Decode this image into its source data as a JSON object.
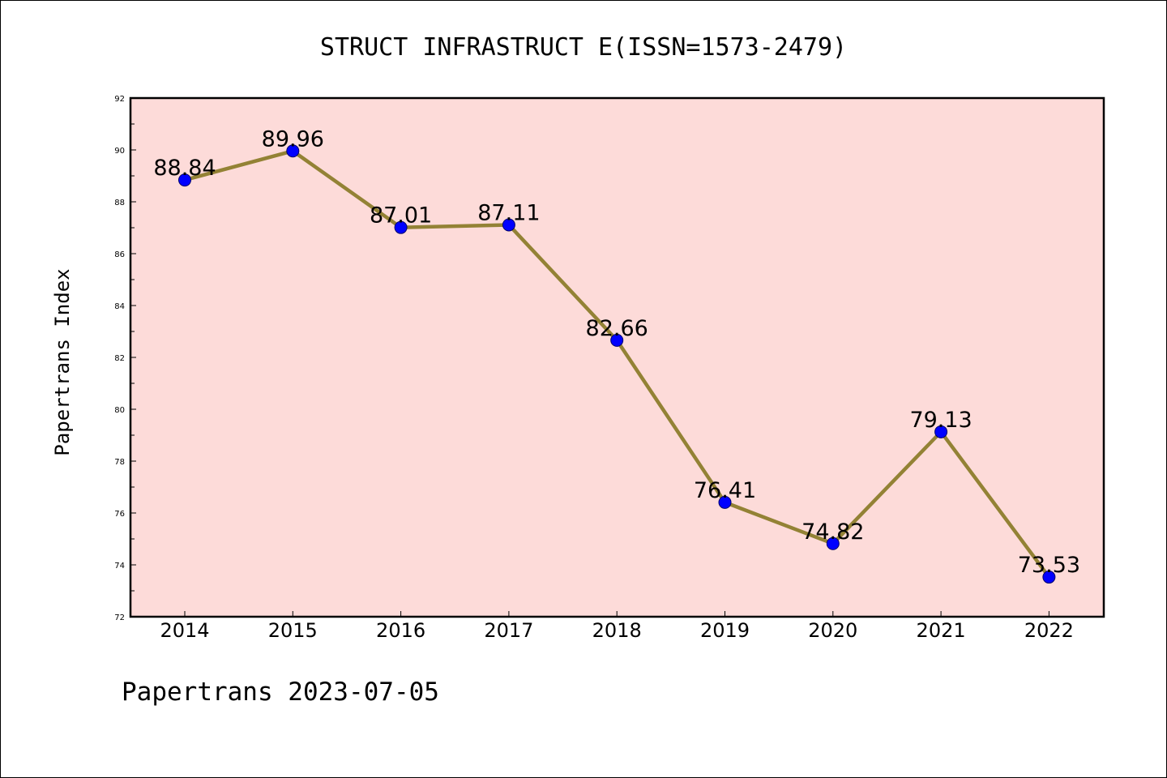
{
  "chart_data": {
    "type": "line",
    "title": "STRUCT INFRASTRUCT E(ISSN=1573-2479)",
    "ylabel": "Papertrans Index",
    "xlabel": "",
    "categories": [
      "2014",
      "2015",
      "2016",
      "2017",
      "2018",
      "2019",
      "2020",
      "2021",
      "2022"
    ],
    "series": [
      {
        "values": [
          88.84,
          89.96,
          87.01,
          87.11,
          82.66,
          76.41,
          74.82,
          79.13,
          73.53
        ]
      }
    ],
    "data_labels": [
      "88.84",
      "89.96",
      "87.01",
      "87.11",
      "82.66",
      "76.41",
      "74.82",
      "79.13",
      "73.53"
    ],
    "ylim": [
      72,
      92
    ],
    "yticks": [
      "72",
      "74",
      "76",
      "78",
      "80",
      "82",
      "84",
      "86",
      "88",
      "90",
      "92"
    ],
    "grid": false,
    "legend": "none",
    "colors": {
      "plot_background": "#fddbd9",
      "line": "#938235",
      "marker": "#0000ff",
      "marker_edge": "#00006b"
    }
  },
  "footer": {
    "text": "Papertrans 2023-07-05"
  }
}
